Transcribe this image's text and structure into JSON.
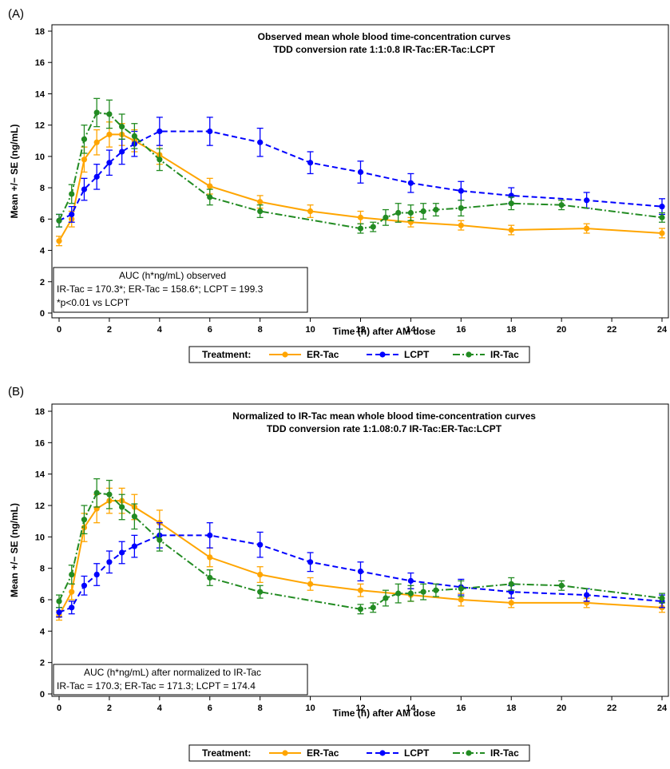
{
  "chart_data": [
    {
      "type": "line",
      "panel_label": "(A)",
      "title": "Observed mean whole blood time-concentration curves",
      "subtitle": "TDD conversion rate 1:1:0.8 IR-Tac:ER-Tac:LCPT",
      "xlabel": "Time (h) after AM dose",
      "ylabel": "Mean +/− SE (ng/mL)",
      "xlim": [
        0,
        24
      ],
      "ylim": [
        0,
        18
      ],
      "xticks": [
        0,
        2,
        4,
        6,
        8,
        10,
        12,
        14,
        16,
        18,
        20,
        22,
        24
      ],
      "yticks": [
        0,
        2,
        4,
        6,
        8,
        10,
        12,
        14,
        16,
        18
      ],
      "grid": false,
      "annotation": [
        "AUC (h*ng/mL) observed",
        "IR-Tac = 170.3*; ER-Tac = 158.6*; LCPT = 199.3",
        "*p<0.01 vs LCPT"
      ],
      "legend": {
        "title": "Treatment:",
        "placement": "bottom-center"
      },
      "series": [
        {
          "name": "ER-Tac",
          "color": "#FFA500",
          "dash": "solid",
          "x": [
            0,
            0.5,
            1,
            1.5,
            2,
            2.5,
            3,
            4,
            6,
            8,
            10,
            12,
            14,
            16,
            18,
            21,
            24
          ],
          "y": [
            4.6,
            6.0,
            9.8,
            10.9,
            11.4,
            11.4,
            11.0,
            10.1,
            8.1,
            7.1,
            6.5,
            6.1,
            5.8,
            5.6,
            5.3,
            5.4,
            5.1
          ],
          "se": [
            0.3,
            0.5,
            0.8,
            0.8,
            0.8,
            0.7,
            0.7,
            0.6,
            0.5,
            0.4,
            0.4,
            0.4,
            0.3,
            0.3,
            0.3,
            0.3,
            0.3
          ]
        },
        {
          "name": "LCPT",
          "color": "#0000FF",
          "dash": "dashed",
          "x": [
            0,
            0.5,
            1,
            1.5,
            2,
            2.5,
            3,
            4,
            6,
            8,
            10,
            12,
            14,
            16,
            18,
            21,
            24
          ],
          "y": [
            5.9,
            6.3,
            7.9,
            8.7,
            9.6,
            10.3,
            10.8,
            11.6,
            11.6,
            10.9,
            9.6,
            9.0,
            8.3,
            7.8,
            7.5,
            7.2,
            6.8
          ],
          "se": [
            0.4,
            0.5,
            0.7,
            0.8,
            0.8,
            0.8,
            0.8,
            0.9,
            0.9,
            0.9,
            0.7,
            0.7,
            0.6,
            0.6,
            0.5,
            0.5,
            0.5
          ]
        },
        {
          "name": "IR-Tac",
          "color": "#228B22",
          "dash": "dashdot",
          "x": [
            0,
            0.5,
            1,
            1.5,
            2,
            2.5,
            3,
            4,
            6,
            8,
            12,
            12.5,
            13,
            13.5,
            14,
            14.5,
            15,
            16,
            18,
            20,
            24
          ],
          "y": [
            5.9,
            7.6,
            11.1,
            12.8,
            12.7,
            11.9,
            11.3,
            9.8,
            7.4,
            6.5,
            5.4,
            5.5,
            6.1,
            6.4,
            6.4,
            6.5,
            6.6,
            6.7,
            7.0,
            6.9,
            6.1
          ],
          "se": [
            0.4,
            0.6,
            0.9,
            0.9,
            0.9,
            0.8,
            0.8,
            0.7,
            0.5,
            0.4,
            0.3,
            0.3,
            0.5,
            0.6,
            0.5,
            0.5,
            0.4,
            0.5,
            0.4,
            0.3,
            0.3
          ]
        }
      ]
    },
    {
      "type": "line",
      "panel_label": "(B)",
      "title": "Normalized to IR-Tac mean whole blood time-concentration curves",
      "subtitle": "TDD conversion rate 1:1.08:0.7 IR-Tac:ER-Tac:LCPT",
      "xlabel": "Time (h) after AM dose",
      "ylabel": "Mean +/− SE (ng/mL)",
      "xlim": [
        0,
        24
      ],
      "ylim": [
        0,
        18
      ],
      "xticks": [
        0,
        2,
        4,
        6,
        8,
        10,
        12,
        14,
        16,
        18,
        20,
        22,
        24
      ],
      "yticks": [
        0,
        2,
        4,
        6,
        8,
        10,
        12,
        14,
        16,
        18
      ],
      "grid": false,
      "annotation": [
        "AUC (h*ng/mL) after normalized to IR-Tac",
        "IR-Tac = 170.3; ER-Tac = 171.3; LCPT = 174.4"
      ],
      "legend": {
        "title": "Treatment:",
        "placement": "bottom-center"
      },
      "series": [
        {
          "name": "ER-Tac",
          "color": "#FFA500",
          "dash": "solid",
          "x": [
            0,
            0.5,
            1,
            1.5,
            2,
            2.5,
            3,
            4,
            6,
            8,
            10,
            12,
            14,
            16,
            18,
            21,
            24
          ],
          "y": [
            5.0,
            6.5,
            10.6,
            11.8,
            12.3,
            12.3,
            11.9,
            10.9,
            8.7,
            7.6,
            7.0,
            6.6,
            6.3,
            6.0,
            5.8,
            5.8,
            5.5
          ],
          "se": [
            0.3,
            0.5,
            0.9,
            0.9,
            0.8,
            0.8,
            0.8,
            0.8,
            0.6,
            0.5,
            0.4,
            0.4,
            0.4,
            0.4,
            0.3,
            0.3,
            0.3
          ]
        },
        {
          "name": "LCPT",
          "color": "#0000FF",
          "dash": "dashed",
          "x": [
            0,
            0.5,
            1,
            1.5,
            2,
            2.5,
            3,
            4,
            6,
            8,
            10,
            12,
            14,
            16,
            18,
            21,
            24
          ],
          "y": [
            5.2,
            5.5,
            6.9,
            7.6,
            8.4,
            9.0,
            9.4,
            10.1,
            10.1,
            9.5,
            8.4,
            7.8,
            7.2,
            6.8,
            6.5,
            6.3,
            5.9
          ],
          "se": [
            0.3,
            0.4,
            0.6,
            0.7,
            0.7,
            0.7,
            0.7,
            0.8,
            0.8,
            0.8,
            0.6,
            0.6,
            0.5,
            0.5,
            0.4,
            0.4,
            0.4
          ]
        },
        {
          "name": "IR-Tac",
          "color": "#228B22",
          "dash": "dashdot",
          "x": [
            0,
            0.5,
            1,
            1.5,
            2,
            2.5,
            3,
            4,
            6,
            8,
            12,
            12.5,
            13,
            13.5,
            14,
            14.5,
            15,
            16,
            18,
            20,
            24
          ],
          "y": [
            5.9,
            7.6,
            11.1,
            12.8,
            12.7,
            11.9,
            11.3,
            9.8,
            7.4,
            6.5,
            5.4,
            5.5,
            6.1,
            6.4,
            6.4,
            6.5,
            6.6,
            6.7,
            7.0,
            6.9,
            6.1
          ],
          "se": [
            0.4,
            0.6,
            0.9,
            0.9,
            0.9,
            0.8,
            0.8,
            0.7,
            0.5,
            0.4,
            0.3,
            0.3,
            0.5,
            0.6,
            0.5,
            0.5,
            0.4,
            0.5,
            0.4,
            0.3,
            0.3
          ]
        }
      ]
    }
  ]
}
